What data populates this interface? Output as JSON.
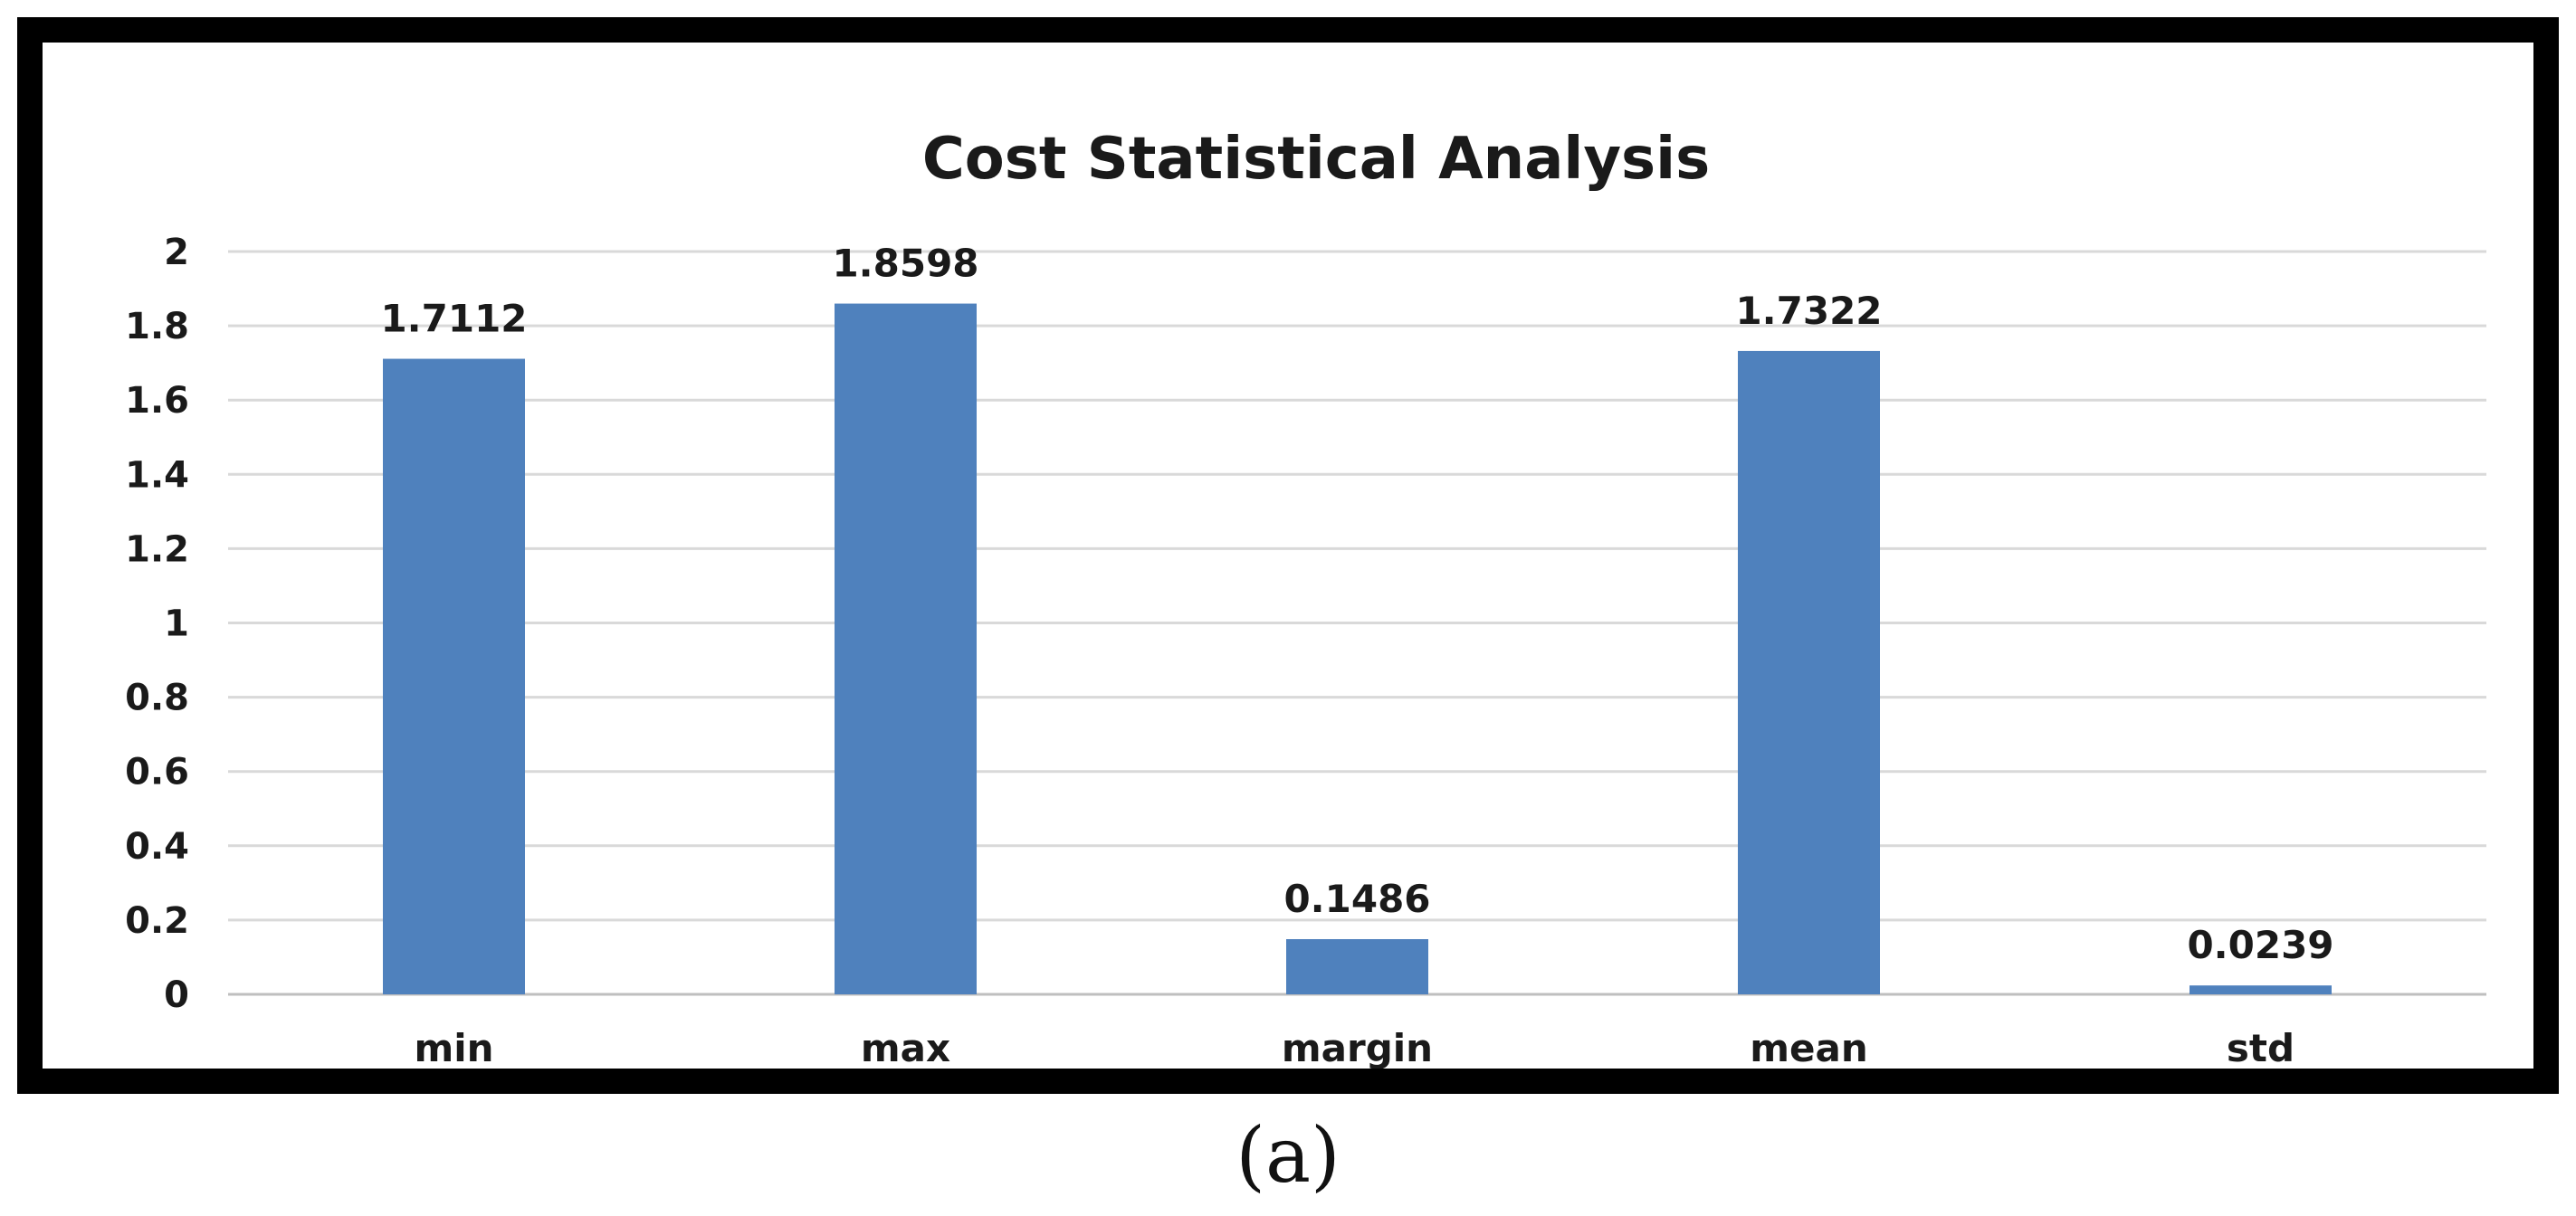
{
  "caption": "(a)",
  "chart_data": {
    "type": "bar",
    "title": "Cost Statistical Analysis",
    "xlabel": "",
    "ylabel": "",
    "categories": [
      "min",
      "max",
      "margin",
      "mean",
      "std"
    ],
    "values": [
      1.7112,
      1.8598,
      0.1486,
      1.7322,
      0.0239
    ],
    "data_labels": [
      "1.7112",
      "1.8598",
      "0.1486",
      "1.7322",
      "0.0239"
    ],
    "ylim": [
      0,
      2
    ],
    "y_ticks": [
      "0",
      "0.2",
      "0.4",
      "0.6",
      "0.8",
      "1",
      "1.2",
      "1.4",
      "1.6",
      "1.8",
      "2"
    ],
    "grid": true,
    "legend": "none",
    "bar_color": "#4f81bd",
    "frame_color": "#000000"
  }
}
